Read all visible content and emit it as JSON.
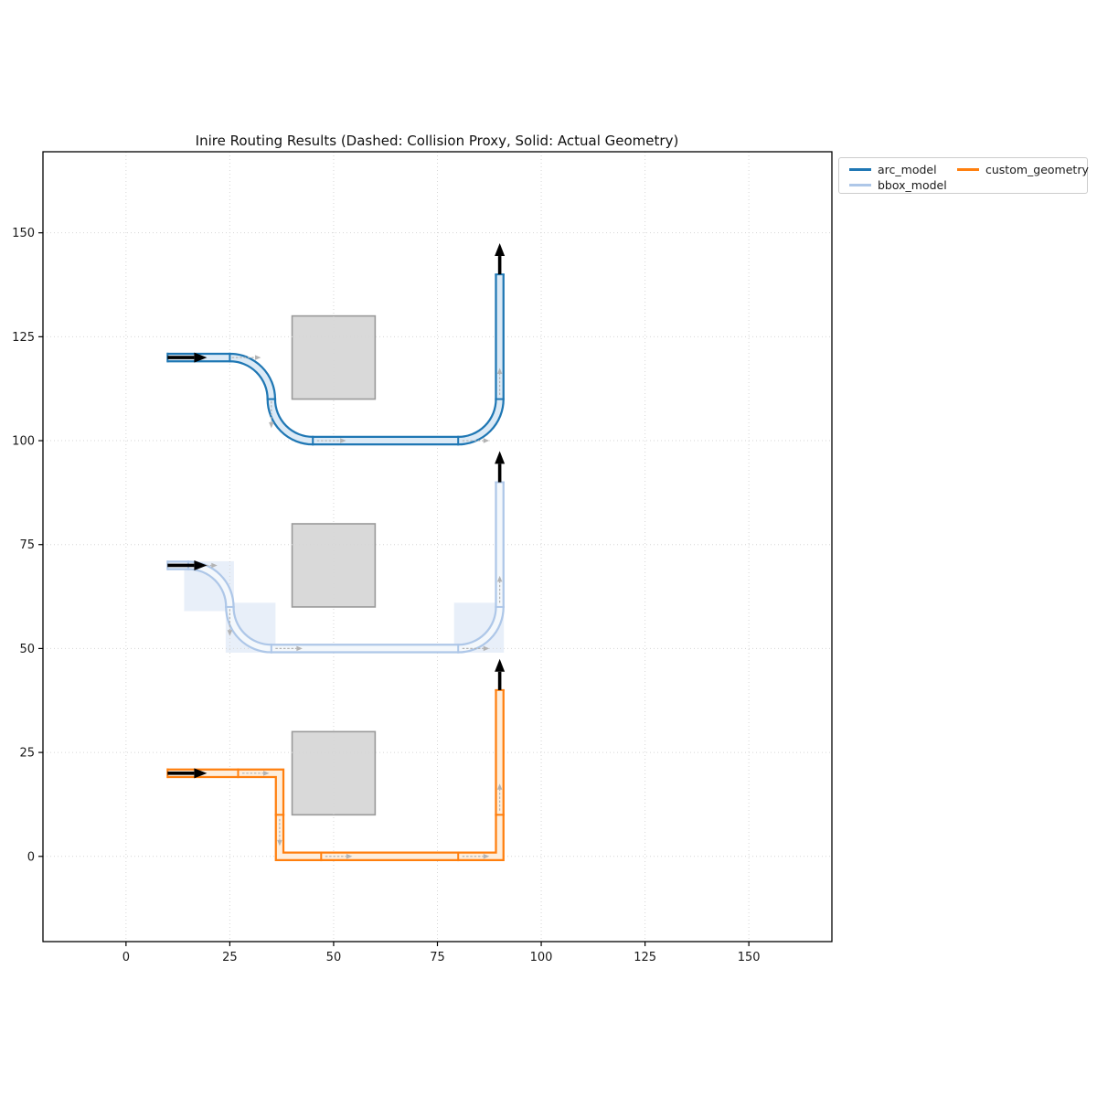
{
  "chart_data": {
    "type": "line",
    "title": "Inire Routing Results (Dashed: Collision Proxy, Solid: Actual Geometry)",
    "xlabel": "",
    "ylabel": "",
    "xlim": [
      -20,
      170
    ],
    "ylim": [
      -20.5,
      169.5
    ],
    "xticks": [
      0,
      25,
      50,
      75,
      100,
      125,
      150
    ],
    "yticks": [
      0,
      25,
      50,
      75,
      100,
      125,
      150
    ],
    "grid": true,
    "grid_style": "dotted",
    "grid_color": "#d6d6d6",
    "legend_position": "outside-upper-right",
    "legend": [
      {
        "label": "arc_model",
        "color": "#1f77b4"
      },
      {
        "label": "bbox_model",
        "color": "#aec7e8"
      },
      {
        "label": "custom_geometry",
        "color": "#ff7f0e"
      }
    ],
    "obstacle_fill": "#d9d9d9",
    "obstacle_edge": "#9a9a9a",
    "direction_arrow_color": "#b3b3b3",
    "marker_arrow_color": "#000000",
    "obstacles": [
      {
        "x": 40,
        "y": 110,
        "w": 20,
        "h": 20
      },
      {
        "x": 40,
        "y": 60,
        "w": 20,
        "h": 20
      },
      {
        "x": 40,
        "y": 10,
        "w": 20,
        "h": 20
      }
    ],
    "routes": [
      {
        "name": "arc_model",
        "color": "#1f77b4",
        "band_fill": "#dceaf6",
        "band_width": 2,
        "start": [
          10,
          120
        ],
        "end": [
          90,
          140
        ],
        "path": [
          "M",
          10,
          120,
          "L",
          25,
          120,
          "A",
          10,
          1,
          35,
          110,
          "A",
          10,
          0,
          45,
          100,
          "L",
          80,
          100,
          "A",
          10,
          0,
          90,
          110,
          "L",
          90,
          140
        ],
        "dividers": [
          [
            10,
            120,
            "v"
          ],
          [
            25,
            120,
            "v"
          ],
          [
            35,
            110,
            "h"
          ],
          [
            45,
            100,
            "v"
          ],
          [
            80,
            100,
            "v"
          ],
          [
            90,
            110,
            "h"
          ],
          [
            90,
            140,
            "h"
          ]
        ],
        "direction_arrows": [
          [
            25.5,
            120,
            32.5,
            120
          ],
          [
            35,
            109.5,
            35,
            103
          ],
          [
            46,
            100,
            53,
            100
          ],
          [
            81,
            100,
            87.5,
            100
          ],
          [
            90,
            111,
            90,
            117.5
          ]
        ],
        "start_arrow": [
          10,
          120,
          19.5,
          120
        ],
        "end_arrow": [
          90,
          140,
          90,
          147.5
        ],
        "collision_bboxes": [],
        "bbox_fill": "rgba(174,199,232,0.28)"
      },
      {
        "name": "bbox_model",
        "color": "#aec7e8",
        "band_fill": "#f4f8fc",
        "band_width": 2,
        "start": [
          10,
          70
        ],
        "end": [
          90,
          90
        ],
        "path": [
          "M",
          10,
          70,
          "L",
          15,
          70,
          "A",
          10,
          1,
          25,
          60,
          "A",
          10,
          0,
          35,
          50,
          "L",
          80,
          50,
          "A",
          10,
          0,
          90,
          60,
          "L",
          90,
          90
        ],
        "dividers": [
          [
            10,
            70,
            "v"
          ],
          [
            15,
            70,
            "v"
          ],
          [
            25,
            60,
            "h"
          ],
          [
            35,
            50,
            "v"
          ],
          [
            80,
            50,
            "v"
          ],
          [
            90,
            60,
            "h"
          ],
          [
            90,
            90,
            "h"
          ]
        ],
        "direction_arrows": [
          [
            15.5,
            70,
            22,
            70
          ],
          [
            25,
            59.5,
            25,
            53
          ],
          [
            36,
            50,
            42.5,
            50
          ],
          [
            81,
            50,
            87.5,
            50
          ],
          [
            90,
            61,
            90,
            67.5
          ]
        ],
        "start_arrow": [
          10,
          70,
          19.5,
          70
        ],
        "end_arrow": [
          90,
          90,
          90,
          97.5
        ],
        "collision_bboxes": [
          {
            "x": 14,
            "y": 59,
            "w": 12,
            "h": 12
          },
          {
            "x": 24,
            "y": 49,
            "w": 12,
            "h": 12
          },
          {
            "x": 79,
            "y": 49,
            "w": 12,
            "h": 12
          }
        ],
        "bbox_fill": "rgba(174,199,232,0.28)"
      },
      {
        "name": "custom_geometry",
        "color": "#ff7f0e",
        "band_fill": "#fdeedd",
        "band_width": 2,
        "start": [
          10,
          20
        ],
        "end": [
          90,
          40
        ],
        "path": [
          "M",
          10,
          20,
          "L",
          37,
          20,
          "L",
          37,
          0,
          "L",
          90,
          0,
          "L",
          90,
          40
        ],
        "dividers": [
          [
            10,
            20,
            "v"
          ],
          [
            27,
            20,
            "v"
          ],
          [
            37,
            10,
            "h"
          ],
          [
            47,
            0,
            "v"
          ],
          [
            80,
            0,
            "v"
          ],
          [
            90,
            10,
            "h"
          ],
          [
            90,
            40,
            "h"
          ]
        ],
        "direction_arrows": [
          [
            28,
            20,
            34.5,
            20
          ],
          [
            37,
            9,
            37,
            2.5
          ],
          [
            48,
            0,
            54.5,
            0
          ],
          [
            81,
            0,
            87.5,
            0
          ],
          [
            90,
            11,
            90,
            17.5
          ]
        ],
        "start_arrow": [
          10,
          20,
          19.5,
          20
        ],
        "end_arrow": [
          90,
          40,
          90,
          47.5
        ],
        "collision_bboxes": [],
        "bbox_fill": "rgba(174,199,232,0.28)"
      }
    ]
  }
}
